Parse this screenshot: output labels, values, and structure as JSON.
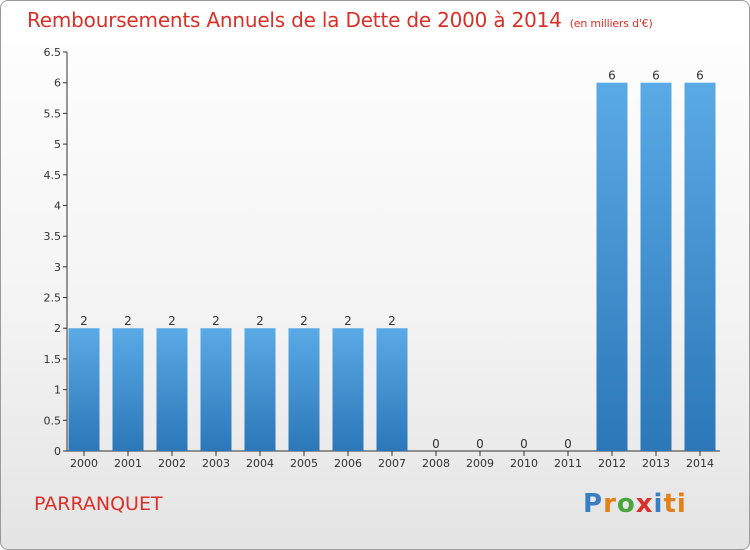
{
  "title": {
    "main": "Remboursements Annuels de la Dette de 2000 à 2014",
    "unit": "(en milliers d'€)"
  },
  "commune": "PARRANQUET",
  "logo": {
    "text": "Proxiti",
    "letters": [
      "P",
      "r",
      "o",
      "x",
      "i",
      "ti"
    ]
  },
  "colors": {
    "title": "#d9302a",
    "bar_top": "#5aaae6",
    "bar_bottom": "#2b77b8",
    "axis": "#333333"
  },
  "chart_data": {
    "type": "bar",
    "title": "Remboursements Annuels de la Dette de 2000 à 2014",
    "unit": "(en milliers d'€)",
    "categories": [
      "2000",
      "2001",
      "2002",
      "2003",
      "2004",
      "2005",
      "2006",
      "2007",
      "2008",
      "2009",
      "2010",
      "2011",
      "2012",
      "2013",
      "2014"
    ],
    "values": [
      2,
      2,
      2,
      2,
      2,
      2,
      2,
      2,
      0,
      0,
      0,
      0,
      6,
      6,
      6
    ],
    "value_labels": [
      "2",
      "2",
      "2",
      "2",
      "2",
      "2",
      "2",
      "2",
      "0",
      "0",
      "0",
      "0",
      "6",
      "6",
      "6"
    ],
    "ylim": [
      0,
      6.5
    ],
    "yticks": [
      0,
      0.5,
      1,
      1.5,
      2,
      2.5,
      3,
      3.5,
      4,
      4.5,
      5,
      5.5,
      6,
      6.5
    ],
    "ytick_labels": [
      "0",
      "0.5",
      "1",
      "1.5",
      "2",
      "2.5",
      "3",
      "3.5",
      "4",
      "4.5",
      "5",
      "5.5",
      "6",
      "6.5"
    ],
    "grid": false,
    "legend": "none"
  }
}
